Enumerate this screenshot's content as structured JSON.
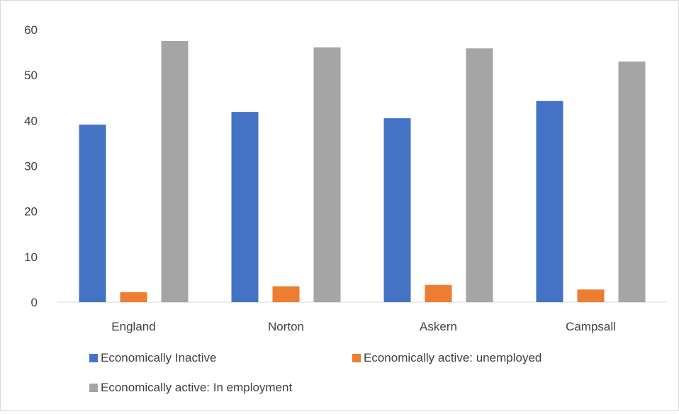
{
  "chart_data": {
    "type": "bar",
    "title": "",
    "xlabel": "",
    "ylabel": "",
    "categories": [
      "England",
      "Norton",
      "Askern",
      "Campsall"
    ],
    "series": [
      {
        "name": "Economically Inactive",
        "color": "#4472c4",
        "values": [
          39.1,
          41.9,
          40.5,
          44.3
        ]
      },
      {
        "name": "Economically active: unemployed",
        "color": "#ed7d31",
        "values": [
          2.2,
          3.5,
          3.8,
          2.8
        ]
      },
      {
        "name": "Economically active: In employment",
        "color": "#a5a5a5",
        "values": [
          57.5,
          56.1,
          55.9,
          53.0
        ]
      }
    ],
    "ylim": [
      0,
      60
    ],
    "yticks": [
      0,
      10,
      20,
      30,
      40,
      50,
      60
    ],
    "grid": false,
    "legend": "bottom"
  }
}
